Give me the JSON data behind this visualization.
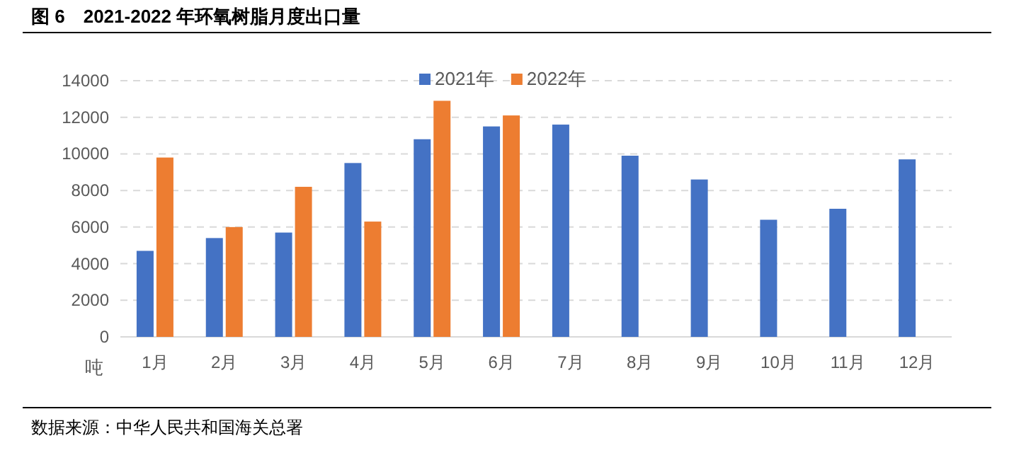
{
  "chart_data": {
    "type": "bar",
    "title": "图 6　2021-2022 年环氧树脂月度出口量",
    "ylabel": "吨",
    "categories": [
      "1月",
      "2月",
      "3月",
      "4月",
      "5月",
      "6月",
      "7月",
      "8月",
      "9月",
      "10月",
      "11月",
      "12月"
    ],
    "series": [
      {
        "name": "2021年",
        "color": "#4472c4",
        "values": [
          4700,
          5400,
          5700,
          9500,
          10800,
          11500,
          11600,
          9900,
          8600,
          6400,
          7000,
          9700
        ]
      },
      {
        "name": "2022年",
        "color": "#ed7d31",
        "values": [
          9800,
          6000,
          8200,
          6300,
          12900,
          12100,
          null,
          null,
          null,
          null,
          null,
          null
        ]
      }
    ],
    "ylim": [
      0,
      14000
    ],
    "yticks": [
      0,
      2000,
      4000,
      6000,
      8000,
      10000,
      12000,
      14000
    ],
    "grid": "y",
    "legend": "top",
    "annotations": [
      "数据来源：中华人民共和国海关总署"
    ]
  }
}
